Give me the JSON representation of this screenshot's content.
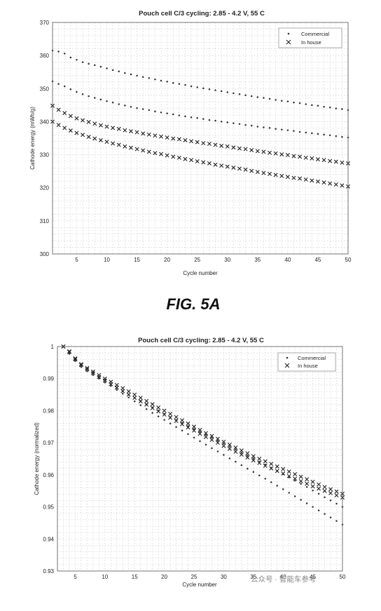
{
  "figure_labels": {
    "fig_a": "FIG. 5A"
  },
  "watermark": "公众号 · 智能车参考",
  "chart_data": [
    {
      "type": "scatter",
      "title": "Pouch cell C/3 cycling: 2.85 - 4.2 V, 55 C",
      "xlabel": "Cycle number",
      "ylabel": "Cathode energy (mWh/g)",
      "xlim": [
        1,
        50
      ],
      "ylim": [
        300,
        370
      ],
      "xticks": [
        5,
        10,
        15,
        20,
        25,
        30,
        35,
        40,
        45,
        50
      ],
      "yticks": [
        300,
        310,
        320,
        330,
        340,
        350,
        360,
        370
      ],
      "grid": true,
      "legend": "top-right",
      "series": [
        {
          "name": "Commercial",
          "marker": "dot",
          "x_start": 1,
          "values": [
            361.5,
            361.2,
            360.6,
            359.4,
            358.7,
            358.0,
            357.5,
            357.1,
            356.6,
            356.1,
            355.6,
            355.2,
            354.7,
            354.3,
            353.9,
            353.5,
            353.2,
            352.8,
            352.4,
            352.1,
            351.7,
            351.4,
            351.1,
            350.7,
            350.4,
            350.1,
            349.8,
            349.5,
            349.2,
            348.9,
            348.6,
            348.3,
            348.0,
            347.7,
            347.4,
            347.2,
            346.9,
            346.6,
            346.3,
            346.1,
            345.8,
            345.6,
            345.3,
            345.0,
            344.8,
            344.5,
            344.3,
            344.0,
            343.8,
            343.5
          ]
        },
        {
          "name": "Commercial",
          "marker": "dot",
          "x_start": 1,
          "values": [
            352.2,
            351.4,
            350.7,
            349.8,
            349.0,
            348.3,
            347.7,
            347.2,
            346.7,
            346.2,
            345.8,
            345.3,
            344.9,
            344.5,
            344.1,
            343.8,
            343.5,
            343.1,
            342.8,
            342.5,
            342.2,
            341.9,
            341.6,
            341.3,
            341.1,
            340.8,
            340.5,
            340.3,
            340.0,
            339.8,
            339.5,
            339.3,
            339.0,
            338.8,
            338.5,
            338.3,
            338.1,
            337.8,
            337.6,
            337.4,
            337.2,
            336.9,
            336.7,
            336.5,
            336.3,
            336.1,
            335.9,
            335.6,
            335.4,
            335.2
          ]
        },
        {
          "name": "In house",
          "marker": "x",
          "x_start": 1,
          "values": [
            344.8,
            343.6,
            342.6,
            341.7,
            341.0,
            340.4,
            339.9,
            339.4,
            338.9,
            338.5,
            338.1,
            337.8,
            337.4,
            337.1,
            336.8,
            336.4,
            336.1,
            335.8,
            335.5,
            335.2,
            334.9,
            334.7,
            334.4,
            334.1,
            333.8,
            333.5,
            333.3,
            333.0,
            332.7,
            332.5,
            332.2,
            331.9,
            331.7,
            331.4,
            331.1,
            330.9,
            330.6,
            330.4,
            330.1,
            329.9,
            329.6,
            329.4,
            329.1,
            328.9,
            328.6,
            328.4,
            328.1,
            327.9,
            327.6,
            327.4
          ]
        },
        {
          "name": "In house",
          "marker": "x",
          "x_start": 1,
          "values": [
            340.0,
            339.0,
            338.1,
            337.3,
            336.6,
            336.0,
            335.4,
            334.9,
            334.4,
            333.9,
            333.4,
            333.0,
            332.5,
            332.1,
            331.7,
            331.3,
            330.9,
            330.5,
            330.2,
            329.8,
            329.4,
            329.1,
            328.7,
            328.4,
            328.0,
            327.7,
            327.4,
            327.0,
            326.7,
            326.4,
            326.1,
            325.8,
            325.5,
            325.1,
            324.8,
            324.5,
            324.2,
            323.9,
            323.6,
            323.3,
            323.0,
            322.8,
            322.5,
            322.2,
            321.9,
            321.6,
            321.3,
            321.0,
            320.7,
            320.4
          ]
        }
      ]
    },
    {
      "type": "scatter",
      "title": "Pouch cell C/3 cycling: 2.85 - 4.2 V, 55 C",
      "xlabel": "Cycle number",
      "ylabel": "Cathode energy (normalized)",
      "xlim": [
        2,
        50
      ],
      "ylim": [
        0.93,
        1.0
      ],
      "xticks": [
        5,
        10,
        15,
        20,
        25,
        30,
        35,
        40,
        45,
        50
      ],
      "yticks": [
        0.93,
        0.94,
        0.95,
        0.96,
        0.97,
        0.98,
        0.99,
        1
      ],
      "grid": true,
      "legend": "top-right",
      "series": [
        {
          "name": "Commercial",
          "marker": "dot",
          "x_start": 3,
          "values": [
            1.0,
            0.9981,
            0.996,
            0.9942,
            0.993,
            0.9917,
            0.9905,
            0.9894,
            0.9882,
            0.9871,
            0.986,
            0.985,
            0.984,
            0.983,
            0.982,
            0.981,
            0.98,
            0.979,
            0.978,
            0.9771,
            0.9762,
            0.9752,
            0.9743,
            0.9734,
            0.9725,
            0.9716,
            0.9706,
            0.9697,
            0.9688,
            0.9679,
            0.9669,
            0.966,
            0.9651,
            0.9641,
            0.9632,
            0.9622,
            0.9612,
            0.9602,
            0.9592,
            0.9582,
            0.9572,
            0.9562,
            0.9551,
            0.9541,
            0.953,
            0.952,
            0.951,
            0.95
          ]
        },
        {
          "name": "Commercial",
          "marker": "dot",
          "x_start": 3,
          "values": [
            1.0,
            0.9977,
            0.9955,
            0.9936,
            0.9923,
            0.9911,
            0.99,
            0.9888,
            0.9877,
            0.9865,
            0.9853,
            0.9841,
            0.9829,
            0.9817,
            0.9805,
            0.9793,
            0.9782,
            0.9771,
            0.976,
            0.9749,
            0.9738,
            0.9727,
            0.9716,
            0.9705,
            0.9694,
            0.9683,
            0.9673,
            0.9662,
            0.9651,
            0.9641,
            0.963,
            0.9619,
            0.9609,
            0.9598,
            0.9588,
            0.9577,
            0.9566,
            0.9555,
            0.9544,
            0.9533,
            0.9522,
            0.9511,
            0.95,
            0.9489,
            0.9478,
            0.9467,
            0.9456,
            0.9445
          ]
        },
        {
          "name": "In house",
          "marker": "x",
          "x_start": 3,
          "values": [
            1.0,
            0.9985,
            0.9963,
            0.9945,
            0.9933,
            0.9922,
            0.9911,
            0.99,
            0.989,
            0.988,
            0.987,
            0.986,
            0.985,
            0.984,
            0.983,
            0.982,
            0.981,
            0.98,
            0.979,
            0.978,
            0.977,
            0.976,
            0.975,
            0.974,
            0.973,
            0.9721,
            0.9712,
            0.9703,
            0.9694,
            0.9685,
            0.9676,
            0.9667,
            0.9658,
            0.965,
            0.9642,
            0.9634,
            0.9626,
            0.9618,
            0.961,
            0.9602,
            0.9594,
            0.9586,
            0.9578,
            0.957,
            0.9562,
            0.9555,
            0.9548,
            0.9541
          ]
        },
        {
          "name": "In house",
          "marker": "x",
          "x_start": 3,
          "values": [
            1.0,
            0.9983,
            0.996,
            0.9942,
            0.9929,
            0.9917,
            0.9905,
            0.9894,
            0.9883,
            0.9872,
            0.9861,
            0.985,
            0.984,
            0.9829,
            0.9819,
            0.9808,
            0.9798,
            0.9788,
            0.9778,
            0.9768,
            0.9758,
            0.9748,
            0.9738,
            0.9728,
            0.9718,
            0.9709,
            0.97,
            0.969,
            0.9681,
            0.9672,
            0.9663,
            0.9654,
            0.9645,
            0.9637,
            0.9628,
            0.962,
            0.9612,
            0.9604,
            0.9596,
            0.9588,
            0.958,
            0.9572,
            0.9564,
            0.9557,
            0.955,
            0.9543,
            0.9536,
            0.9529
          ]
        }
      ]
    }
  ]
}
